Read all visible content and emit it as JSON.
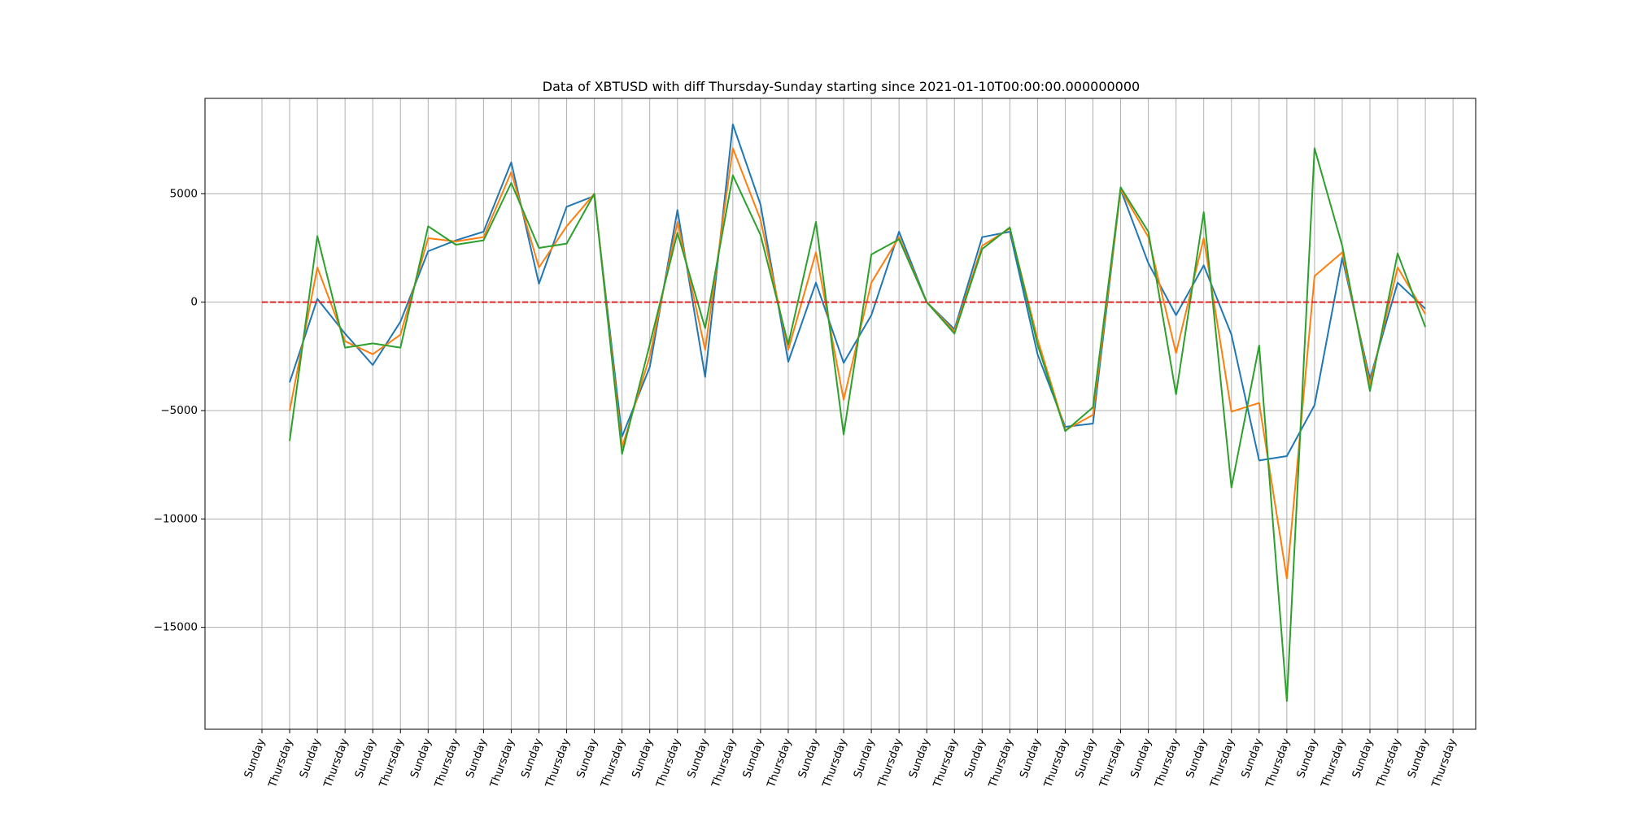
{
  "chart_data": {
    "type": "line",
    "title": "Data of XBTUSD with diff Thursday-Sunday starting since 2021-01-10T00:00:00.000000000",
    "xlabel": "",
    "ylabel": "",
    "ylim": [
      -19700,
      9400
    ],
    "yticks": [
      5000,
      0,
      -5000,
      -10000,
      -15000
    ],
    "ytick_labels": [
      "5000",
      "0",
      "−5000",
      "−10000",
      "−15000"
    ],
    "grid": true,
    "legend": "none",
    "categories": [
      "Sunday",
      "Thursday",
      "Sunday",
      "Thursday",
      "Sunday",
      "Thursday",
      "Sunday",
      "Thursday",
      "Sunday",
      "Thursday",
      "Sunday",
      "Thursday",
      "Sunday",
      "Thursday",
      "Sunday",
      "Thursday",
      "Sunday",
      "Thursday",
      "Sunday",
      "Thursday",
      "Sunday",
      "Thursday",
      "Sunday",
      "Thursday",
      "Sunday",
      "Thursday",
      "Sunday",
      "Thursday",
      "Sunday",
      "Thursday",
      "Sunday",
      "Thursday",
      "Sunday",
      "Thursday",
      "Sunday",
      "Thursday",
      "Sunday",
      "Thursday",
      "Sunday",
      "Thursday",
      "Sunday",
      "Thursday",
      "Sunday",
      "Thursday"
    ],
    "series": [
      {
        "color": "#1f77b4",
        "values": [
          null,
          -3700,
          150,
          -1450,
          -2900,
          -900,
          2350,
          2850,
          3250,
          6450,
          850,
          4400,
          4900,
          -6200,
          -3000,
          4250,
          -3450,
          8200,
          4500,
          -2750,
          900,
          -2800,
          -600,
          3250,
          0,
          -1250,
          3000,
          3250,
          -2400,
          -5750,
          -5600,
          5200,
          1800,
          -600,
          1700,
          -1500,
          -7300,
          -7100,
          -4750,
          2050,
          -3550,
          900,
          -300,
          null
        ]
      },
      {
        "color": "#ff7f0e",
        "values": [
          null,
          -5000,
          1600,
          -1800,
          -2400,
          -1500,
          2950,
          2800,
          3000,
          6000,
          1600,
          3500,
          5000,
          -6700,
          -2500,
          3700,
          -2200,
          7100,
          3800,
          -2200,
          2300,
          -4500,
          900,
          3000,
          0,
          -1350,
          2600,
          3400,
          -1700,
          -5900,
          -5200,
          5200,
          3000,
          -2350,
          2950,
          -5050,
          -4650,
          -12750,
          1200,
          2300,
          -3800,
          1600,
          -550,
          null
        ]
      },
      {
        "color": "#2ca02c",
        "values": [
          null,
          -6400,
          3050,
          -2100,
          -1900,
          -2100,
          3500,
          2650,
          2850,
          5500,
          2500,
          2700,
          5000,
          -7000,
          -1950,
          3200,
          -1200,
          5850,
          3100,
          -1950,
          3700,
          -6100,
          2200,
          2900,
          0,
          -1450,
          2450,
          3450,
          -1950,
          -5950,
          -4850,
          5300,
          3250,
          -4250,
          4150,
          -8550,
          -2000,
          -18400,
          7100,
          2600,
          -4100,
          2250,
          -1150,
          null
        ]
      },
      {
        "color": "#d62728",
        "dashed": true,
        "values": [
          0,
          0,
          0,
          0,
          0,
          0,
          0,
          0,
          0,
          0,
          0,
          0,
          0,
          0,
          0,
          0,
          0,
          0,
          0,
          0,
          0,
          0,
          0,
          0,
          0,
          0,
          0,
          0,
          0,
          0,
          0,
          0,
          0,
          0,
          0,
          0,
          0,
          0,
          0,
          0,
          0,
          0,
          0,
          null
        ]
      }
    ]
  }
}
